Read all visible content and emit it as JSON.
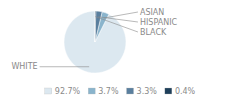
{
  "chart_data": {
    "type": "pie",
    "categories": [
      "WHITE",
      "ASIAN",
      "HISPANIC",
      "BLACK"
    ],
    "values": [
      92.7,
      3.7,
      3.3,
      0.4
    ],
    "value_labels": [
      "92.7%",
      "3.7%",
      "3.3%",
      "0.4%"
    ],
    "colors": [
      "#dce8f0",
      "#8ab4cc",
      "#5a7f9e",
      "#1e3f5a"
    ],
    "legend": "bottom"
  }
}
